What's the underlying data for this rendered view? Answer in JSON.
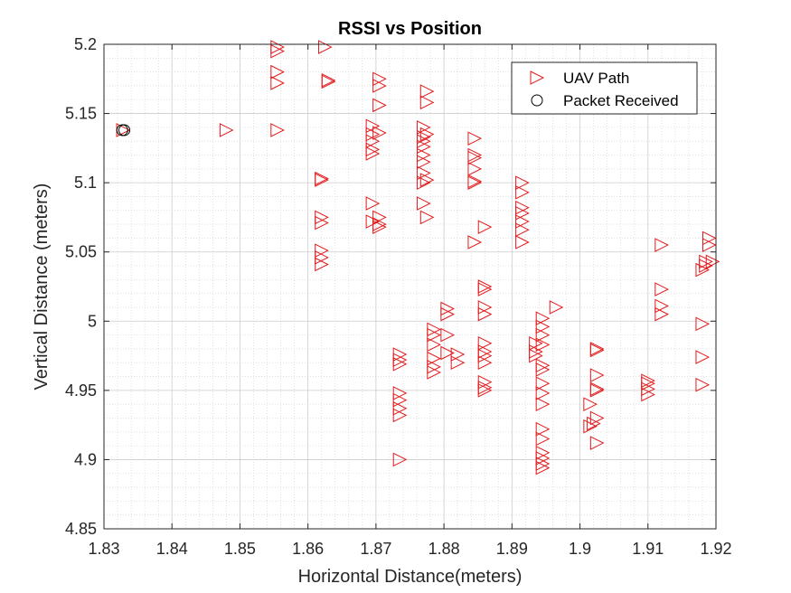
{
  "chart_data": {
    "type": "scatter",
    "title": "RSSI vs Position",
    "xlabel": "Horizontal Distance(meters)",
    "ylabel": "Vertical Distance (meters)",
    "xlim": [
      1.83,
      1.92
    ],
    "ylim": [
      4.85,
      5.2
    ],
    "xticks": [
      "1.83",
      "1.84",
      "1.85",
      "1.86",
      "1.87",
      "1.88",
      "1.89",
      "1.9",
      "1.91",
      "1.92"
    ],
    "yticks": [
      "4.85",
      "4.9",
      "4.95",
      "5",
      "5.05",
      "5.1",
      "5.15",
      "5.2"
    ],
    "grid": "major and minor (dotted)",
    "legend_position": "top-right",
    "series": [
      {
        "name": "UAV Path",
        "marker": "triangle-right",
        "color": "#e41a1c",
        "points": [
          [
            1.8328,
            5.138
          ],
          [
            1.848,
            5.138
          ],
          [
            1.8555,
            5.198
          ],
          [
            1.8555,
            5.195
          ],
          [
            1.8555,
            5.18
          ],
          [
            1.8555,
            5.172
          ],
          [
            1.8555,
            5.138
          ],
          [
            1.8625,
            5.198
          ],
          [
            1.863,
            5.174
          ],
          [
            1.863,
            5.173
          ],
          [
            1.862,
            5.103
          ],
          [
            1.862,
            5.102
          ],
          [
            1.862,
            5.075
          ],
          [
            1.862,
            5.071
          ],
          [
            1.862,
            5.051
          ],
          [
            1.862,
            5.046
          ],
          [
            1.862,
            5.041
          ],
          [
            1.8695,
            5.141
          ],
          [
            1.8695,
            5.135
          ],
          [
            1.8695,
            5.13
          ],
          [
            1.8695,
            5.124
          ],
          [
            1.8695,
            5.121
          ],
          [
            1.8695,
            5.085
          ],
          [
            1.8695,
            5.072
          ],
          [
            1.8705,
            5.175
          ],
          [
            1.8705,
            5.17
          ],
          [
            1.8705,
            5.156
          ],
          [
            1.8705,
            5.136
          ],
          [
            1.8705,
            5.075
          ],
          [
            1.8705,
            5.07
          ],
          [
            1.8705,
            5.068
          ],
          [
            1.8775,
            5.166
          ],
          [
            1.8775,
            5.158
          ],
          [
            1.877,
            5.14
          ],
          [
            1.877,
            5.133
          ],
          [
            1.877,
            5.13
          ],
          [
            1.877,
            5.126
          ],
          [
            1.877,
            5.12
          ],
          [
            1.877,
            5.115
          ],
          [
            1.8775,
            5.135
          ],
          [
            1.877,
            5.107
          ],
          [
            1.877,
            5.1
          ],
          [
            1.8775,
            5.102
          ],
          [
            1.877,
            5.085
          ],
          [
            1.8775,
            5.075
          ],
          [
            1.8845,
            5.132
          ],
          [
            1.8845,
            5.12
          ],
          [
            1.8845,
            5.118
          ],
          [
            1.8845,
            5.11
          ],
          [
            1.8845,
            5.101
          ],
          [
            1.8845,
            5.1
          ],
          [
            1.8845,
            5.057
          ],
          [
            1.886,
            5.068
          ],
          [
            1.8915,
            5.1
          ],
          [
            1.8915,
            5.093
          ],
          [
            1.8915,
            5.082
          ],
          [
            1.8915,
            5.078
          ],
          [
            1.8915,
            5.072
          ],
          [
            1.8915,
            5.066
          ],
          [
            1.8915,
            5.057
          ],
          [
            1.912,
            5.055
          ],
          [
            1.919,
            5.06
          ],
          [
            1.919,
            5.055
          ],
          [
            1.9185,
            5.043
          ],
          [
            1.9185,
            5.04
          ],
          [
            1.918,
            5.037
          ],
          [
            1.9195,
            5.043
          ],
          [
            1.912,
            5.023
          ],
          [
            1.912,
            5.011
          ],
          [
            1.912,
            5.005
          ],
          [
            1.918,
            4.998
          ],
          [
            1.918,
            4.974
          ],
          [
            1.918,
            4.954
          ],
          [
            1.8805,
            5.009
          ],
          [
            1.8805,
            5.005
          ],
          [
            1.8805,
            4.99
          ],
          [
            1.8785,
            4.994
          ],
          [
            1.8785,
            4.99
          ],
          [
            1.8785,
            4.983
          ],
          [
            1.8785,
            4.973
          ],
          [
            1.8785,
            4.967
          ],
          [
            1.8785,
            4.963
          ],
          [
            1.8805,
            4.977
          ],
          [
            1.882,
            4.976
          ],
          [
            1.882,
            4.97
          ],
          [
            1.8735,
            4.976
          ],
          [
            1.8735,
            4.972
          ],
          [
            1.8735,
            4.969
          ],
          [
            1.8735,
            4.948
          ],
          [
            1.8735,
            4.943
          ],
          [
            1.8735,
            4.937
          ],
          [
            1.8735,
            4.932
          ],
          [
            1.8735,
            4.9
          ],
          [
            1.886,
            5.025
          ],
          [
            1.886,
            5.023
          ],
          [
            1.886,
            5.01
          ],
          [
            1.886,
            5.005
          ],
          [
            1.886,
            4.984
          ],
          [
            1.886,
            4.978
          ],
          [
            1.886,
            4.975
          ],
          [
            1.886,
            4.97
          ],
          [
            1.886,
            4.956
          ],
          [
            1.886,
            4.952
          ],
          [
            1.886,
            4.95
          ],
          [
            1.8935,
            4.984
          ],
          [
            1.8935,
            4.978
          ],
          [
            1.8935,
            4.975
          ],
          [
            1.8945,
            5.002
          ],
          [
            1.8945,
            4.996
          ],
          [
            1.8945,
            4.99
          ],
          [
            1.8945,
            4.983
          ],
          [
            1.8945,
            4.968
          ],
          [
            1.8945,
            4.965
          ],
          [
            1.8945,
            4.955
          ],
          [
            1.8945,
            4.948
          ],
          [
            1.8945,
            4.94
          ],
          [
            1.8945,
            4.922
          ],
          [
            1.8945,
            4.915
          ],
          [
            1.8945,
            4.905
          ],
          [
            1.8945,
            4.901
          ],
          [
            1.8945,
            4.897
          ],
          [
            1.8945,
            4.894
          ],
          [
            1.8965,
            5.01
          ],
          [
            1.9025,
            4.98
          ],
          [
            1.9025,
            4.979
          ],
          [
            1.9025,
            4.961
          ],
          [
            1.9025,
            4.951
          ],
          [
            1.9025,
            4.95
          ],
          [
            1.9015,
            4.94
          ],
          [
            1.9025,
            4.93
          ],
          [
            1.902,
            4.926
          ],
          [
            1.9015,
            4.924
          ],
          [
            1.9025,
            4.912
          ],
          [
            1.91,
            4.957
          ],
          [
            1.91,
            4.955
          ],
          [
            1.91,
            4.951
          ],
          [
            1.91,
            4.947
          ]
        ]
      },
      {
        "name": "Packet Received",
        "marker": "circle",
        "color": "#000000",
        "points": [
          [
            1.8327,
            5.138
          ],
          [
            1.833,
            5.138
          ]
        ]
      }
    ]
  }
}
